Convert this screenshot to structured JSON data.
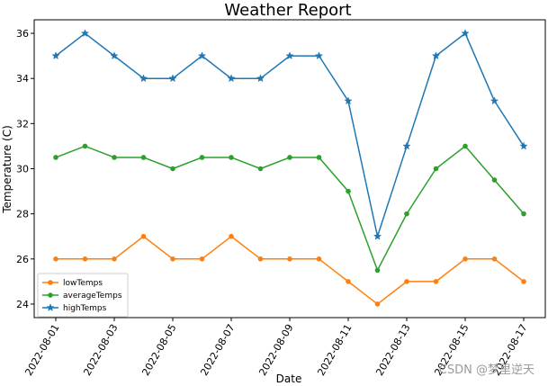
{
  "chart_data": {
    "type": "line",
    "title": "Weather Report",
    "xlabel": "Date",
    "ylabel": "Temperature (C)",
    "x": [
      "2022-08-01",
      "2022-08-02",
      "2022-08-03",
      "2022-08-04",
      "2022-08-05",
      "2022-08-06",
      "2022-08-07",
      "2022-08-08",
      "2022-08-09",
      "2022-08-10",
      "2022-08-11",
      "2022-08-12",
      "2022-08-13",
      "2022-08-14",
      "2022-08-15",
      "2022-08-16",
      "2022-08-17"
    ],
    "xticks": [
      "2022-08-01",
      "2022-08-03",
      "2022-08-05",
      "2022-08-07",
      "2022-08-09",
      "2022-08-11",
      "2022-08-13",
      "2022-08-15",
      "2022-08-17"
    ],
    "yticks": [
      24,
      26,
      28,
      30,
      32,
      34,
      36
    ],
    "ylim": [
      23.4,
      36.6
    ],
    "legend_position": "lower-left",
    "grid": false,
    "series": [
      {
        "name": "lowTemps",
        "color": "#ff7f0e",
        "marker": "circle",
        "values": [
          26,
          26,
          26,
          27,
          26,
          26,
          27,
          26,
          26,
          26,
          25,
          24,
          25,
          25,
          26,
          26,
          25
        ]
      },
      {
        "name": "averageTemps",
        "color": "#2ca02c",
        "marker": "circle",
        "values": [
          30.5,
          31,
          30.5,
          30.5,
          30,
          30.5,
          30.5,
          30,
          30.5,
          30.5,
          29,
          25.5,
          28,
          30,
          31,
          29.5,
          28
        ]
      },
      {
        "name": "highTemps",
        "color": "#1f77b4",
        "marker": "star",
        "values": [
          35,
          36,
          35,
          34,
          34,
          35,
          34,
          34,
          35,
          35,
          33,
          27,
          31,
          35,
          36,
          33,
          31
        ]
      }
    ]
  },
  "watermark": "CSDN @梦里逆天"
}
